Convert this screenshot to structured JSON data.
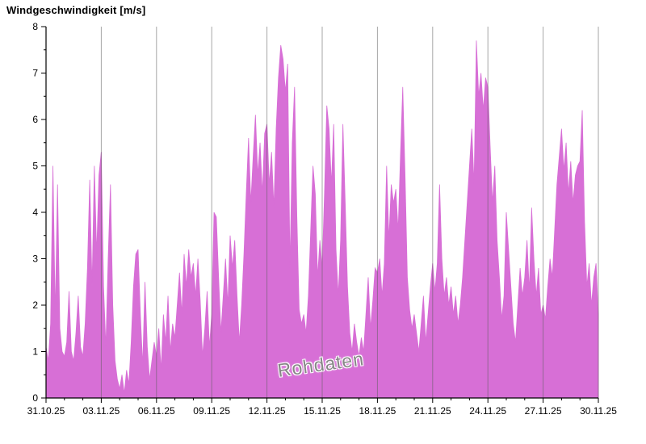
{
  "page": {
    "title": "Windgeschwindigkeit [m/s]",
    "watermark": "Rohdaten"
  },
  "chart_data": {
    "type": "area",
    "title": "Windgeschwindigkeit [m/s]",
    "xlabel": "",
    "ylabel": "Windgeschwindigkeit [m/s]",
    "series_name": "Rohdaten",
    "ylim": [
      0,
      8
    ],
    "y_ticks": [
      0,
      1,
      2,
      3,
      4,
      5,
      6,
      7,
      8
    ],
    "y_minor_step": 0.5,
    "x_range_days": [
      0,
      30
    ],
    "x_minor_step_days": 1,
    "x_tick_days": [
      0,
      3,
      6,
      9,
      12,
      15,
      18,
      21,
      24,
      27,
      30
    ],
    "x_tick_labels": [
      "31.10.25",
      "03.11.25",
      "06.11.25",
      "09.11.25",
      "12.11.25",
      "15.11.25",
      "18.11.25",
      "21.11.25",
      "24.11.25",
      "27.11.25",
      "30.11.25"
    ],
    "samples_per_day": 8,
    "grid": "vertical-only",
    "legend_position": "none",
    "colors": {
      "area": "#d76fd6",
      "axis": "#000000",
      "grid": "#5f5f5f",
      "tick_label": "#000000",
      "watermark": "#878787",
      "background": "#ffffff"
    },
    "values": [
      1.1,
      0.8,
      1.6,
      5.0,
      1.8,
      4.6,
      1.5,
      1.0,
      0.9,
      1.2,
      2.3,
      1.0,
      0.8,
      1.4,
      2.2,
      1.1,
      0.9,
      1.6,
      2.8,
      4.7,
      2.4,
      5.0,
      3.1,
      4.8,
      5.3,
      2.4,
      1.1,
      3.0,
      4.6,
      2.0,
      0.8,
      0.4,
      0.2,
      0.5,
      0.1,
      0.6,
      0.3,
      1.2,
      2.4,
      3.1,
      3.2,
      1.8,
      0.7,
      2.5,
      1.1,
      0.4,
      0.8,
      1.2,
      0.9,
      1.5,
      0.6,
      1.8,
      1.2,
      2.2,
      1.0,
      1.6,
      1.3,
      2.0,
      2.7,
      1.8,
      3.1,
      2.4,
      3.2,
      2.6,
      2.9,
      2.2,
      3.0,
      2.1,
      0.9,
      1.5,
      2.3,
      1.1,
      1.8,
      4.0,
      3.9,
      2.6,
      1.4,
      2.2,
      3.0,
      2.0,
      3.5,
      2.8,
      3.4,
      2.2,
      1.2,
      2.0,
      3.1,
      4.4,
      5.6,
      4.2,
      5.2,
      6.1,
      4.8,
      5.5,
      4.4,
      5.7,
      5.9,
      4.6,
      5.3,
      4.1,
      5.8,
      6.9,
      7.6,
      7.3,
      6.6,
      7.2,
      2.8,
      5.5,
      6.7,
      3.9,
      1.9,
      1.6,
      1.8,
      1.4,
      2.2,
      3.6,
      5.0,
      4.4,
      2.6,
      3.4,
      2.8,
      4.4,
      6.3,
      5.8,
      4.6,
      5.9,
      3.2,
      2.2,
      3.4,
      5.9,
      4.2,
      2.4,
      1.4,
      1.0,
      1.6,
      1.2,
      0.9,
      1.3,
      1.0,
      1.8,
      2.6,
      1.5,
      2.1,
      2.8,
      2.7,
      3.0,
      2.2,
      2.9,
      5.0,
      3.4,
      4.6,
      4.2,
      4.5,
      3.6,
      5.2,
      6.7,
      4.8,
      2.6,
      1.9,
      1.5,
      1.8,
      1.4,
      1.0,
      1.6,
      2.2,
      1.2,
      1.8,
      2.4,
      2.9,
      2.3,
      2.9,
      4.6,
      3.0,
      2.2,
      2.6,
      2.0,
      2.4,
      1.8,
      2.2,
      1.6,
      2.0,
      2.6,
      3.4,
      4.2,
      5.0,
      5.8,
      4.6,
      7.7,
      6.5,
      7.0,
      6.2,
      6.9,
      6.7,
      5.4,
      4.2,
      5.0,
      3.4,
      2.6,
      1.7,
      2.2,
      4.0,
      3.2,
      2.4,
      1.6,
      1.2,
      2.0,
      2.8,
      2.2,
      2.6,
      3.4,
      2.3,
      4.1,
      3.0,
      2.2,
      2.8,
      1.8,
      2.0,
      1.7,
      2.4,
      3.0,
      2.6,
      3.6,
      4.6,
      5.2,
      5.8,
      4.9,
      5.5,
      4.4,
      5.1,
      4.2,
      4.8,
      5.0,
      5.1,
      6.2,
      3.8,
      2.4,
      2.9,
      2.0,
      2.6,
      2.9,
      1.8
    ]
  }
}
